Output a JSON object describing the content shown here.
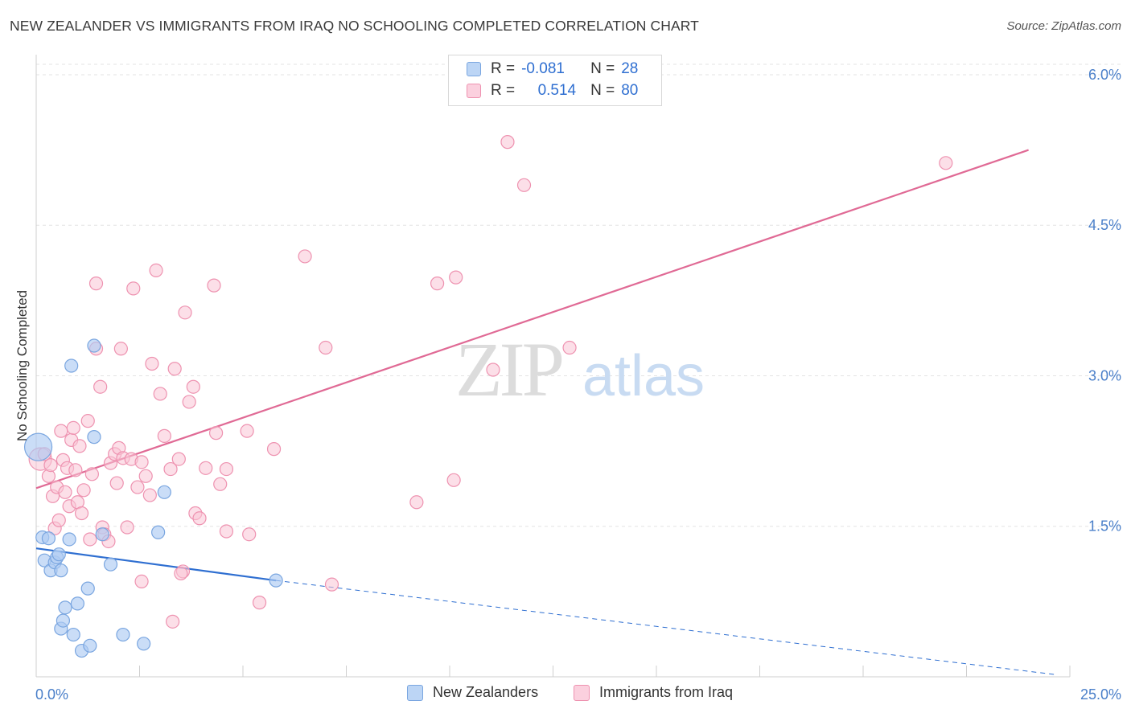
{
  "title": "NEW ZEALANDER VS IMMIGRANTS FROM IRAQ NO SCHOOLING COMPLETED CORRELATION CHART",
  "source": "Source: ZipAtlas.com",
  "watermark": {
    "zip": "ZIP",
    "atlas": "atlas"
  },
  "legend_top": [
    {
      "r_label": "R =",
      "r_value": "-0.081",
      "n_label": "N =",
      "n_value": "28"
    },
    {
      "r_label": "R =",
      "r_value": "0.514",
      "n_label": "N =",
      "n_value": "80"
    }
  ],
  "colors": {
    "blue_fill": "#aecbf2",
    "blue_stroke": "#7aa6e0",
    "blue_line": "#2f6fd1",
    "pink_fill": "#f9c5d6",
    "pink_stroke": "#ee92b0",
    "pink_line": "#e06a95",
    "tick_label": "#4a7fc9",
    "grid": "#e3e3e3"
  },
  "chart_data": {
    "type": "scatter",
    "title": "NEW ZEALANDER VS IMMIGRANTS FROM IRAQ NO SCHOOLING COMPLETED CORRELATION CHART",
    "xlabel": "",
    "ylabel": "No Schooling Completed",
    "xlim": [
      0,
      25
    ],
    "ylim": [
      0,
      6.2
    ],
    "x_tick_labels": [
      "0.0%",
      "25.0%"
    ],
    "y_ticks": [
      1.5,
      3.0,
      4.5,
      6.0
    ],
    "y_tick_labels": [
      "1.5%",
      "3.0%",
      "4.5%",
      "6.0%"
    ],
    "grid": "horizontal dashed",
    "legend_placement": "bottom-center",
    "series": [
      {
        "name": "New Zealanders",
        "color": "blue",
        "points": [
          [
            0.05,
            2.29
          ],
          [
            0.15,
            1.39
          ],
          [
            0.3,
            1.38
          ],
          [
            0.2,
            1.16
          ],
          [
            0.35,
            1.06
          ],
          [
            0.45,
            1.14
          ],
          [
            0.5,
            1.19
          ],
          [
            0.55,
            1.22
          ],
          [
            0.6,
            0.48
          ],
          [
            0.6,
            1.06
          ],
          [
            0.65,
            0.56
          ],
          [
            0.7,
            0.69
          ],
          [
            0.8,
            1.37
          ],
          [
            0.85,
            3.1
          ],
          [
            0.9,
            0.42
          ],
          [
            1.0,
            0.73
          ],
          [
            1.1,
            0.26
          ],
          [
            1.25,
            0.88
          ],
          [
            1.3,
            0.31
          ],
          [
            1.4,
            2.39
          ],
          [
            1.4,
            3.3
          ],
          [
            1.6,
            1.42
          ],
          [
            1.8,
            1.12
          ],
          [
            2.1,
            0.42
          ],
          [
            2.6,
            0.33
          ],
          [
            2.95,
            1.44
          ],
          [
            3.1,
            1.84
          ],
          [
            5.8,
            0.96
          ]
        ]
      },
      {
        "name": "Immigrants from Iraq",
        "color": "pink",
        "points": [
          [
            0.1,
            2.17
          ],
          [
            0.2,
            2.22
          ],
          [
            0.3,
            2.0
          ],
          [
            0.35,
            2.11
          ],
          [
            0.4,
            1.8
          ],
          [
            0.45,
            1.48
          ],
          [
            0.5,
            1.89
          ],
          [
            0.55,
            1.56
          ],
          [
            0.6,
            2.45
          ],
          [
            0.65,
            2.16
          ],
          [
            0.7,
            1.84
          ],
          [
            0.75,
            2.08
          ],
          [
            0.8,
            1.7
          ],
          [
            0.85,
            2.36
          ],
          [
            0.9,
            2.48
          ],
          [
            0.95,
            2.06
          ],
          [
            1.0,
            1.74
          ],
          [
            1.05,
            2.3
          ],
          [
            1.1,
            1.63
          ],
          [
            1.15,
            1.86
          ],
          [
            1.25,
            2.55
          ],
          [
            1.3,
            1.37
          ],
          [
            1.35,
            2.02
          ],
          [
            1.45,
            3.92
          ],
          [
            1.45,
            3.27
          ],
          [
            1.55,
            2.89
          ],
          [
            1.6,
            1.49
          ],
          [
            1.65,
            1.42
          ],
          [
            1.75,
            1.35
          ],
          [
            1.8,
            2.13
          ],
          [
            1.9,
            2.22
          ],
          [
            1.95,
            1.93
          ],
          [
            2.0,
            2.28
          ],
          [
            2.05,
            3.27
          ],
          [
            2.1,
            2.18
          ],
          [
            2.2,
            1.49
          ],
          [
            2.3,
            2.17
          ],
          [
            2.35,
            3.87
          ],
          [
            2.45,
            1.89
          ],
          [
            2.55,
            2.14
          ],
          [
            2.65,
            2.0
          ],
          [
            2.75,
            1.81
          ],
          [
            2.8,
            3.12
          ],
          [
            2.9,
            4.05
          ],
          [
            3.0,
            2.82
          ],
          [
            3.1,
            2.4
          ],
          [
            3.25,
            2.07
          ],
          [
            3.35,
            3.07
          ],
          [
            3.45,
            2.17
          ],
          [
            3.55,
            1.05
          ],
          [
            3.6,
            3.63
          ],
          [
            3.7,
            2.74
          ],
          [
            3.8,
            2.89
          ],
          [
            3.85,
            1.63
          ],
          [
            3.95,
            1.58
          ],
          [
            4.1,
            2.08
          ],
          [
            4.3,
            3.9
          ],
          [
            4.35,
            2.43
          ],
          [
            4.45,
            1.92
          ],
          [
            4.6,
            2.07
          ],
          [
            4.6,
            1.45
          ],
          [
            5.1,
            2.45
          ],
          [
            5.15,
            1.42
          ],
          [
            5.4,
            0.74
          ],
          [
            5.75,
            2.27
          ],
          [
            6.5,
            4.19
          ],
          [
            7.0,
            3.28
          ],
          [
            7.15,
            0.92
          ],
          [
            9.2,
            1.74
          ],
          [
            9.7,
            3.92
          ],
          [
            10.1,
            1.96
          ],
          [
            10.15,
            3.98
          ],
          [
            11.05,
            3.06
          ],
          [
            11.4,
            5.33
          ],
          [
            11.8,
            4.9
          ],
          [
            12.9,
            3.28
          ],
          [
            22.0,
            5.12
          ],
          [
            3.3,
            0.55
          ],
          [
            3.5,
            1.03
          ],
          [
            2.55,
            0.95
          ]
        ]
      }
    ],
    "trendlines": [
      {
        "series": "New Zealanders",
        "x": [
          0,
          5.8
        ],
        "y": [
          1.28,
          0.96
        ],
        "style": "solid"
      },
      {
        "series": "New Zealanders",
        "x": [
          5.8,
          24.7
        ],
        "y": [
          0.96,
          0.02
        ],
        "style": "dashed"
      },
      {
        "series": "Immigrants from Iraq",
        "x": [
          0,
          24.0
        ],
        "y": [
          1.88,
          5.25
        ],
        "style": "solid"
      }
    ]
  },
  "bottom_legend": [
    {
      "label": "New Zealanders"
    },
    {
      "label": "Immigrants from Iraq"
    }
  ]
}
